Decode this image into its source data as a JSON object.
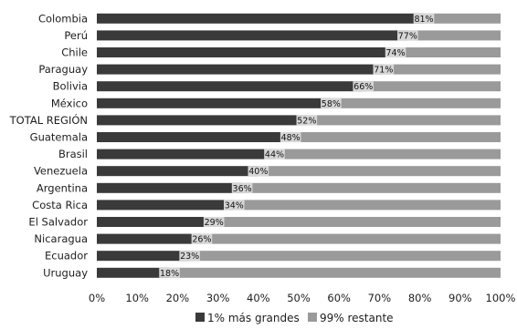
{
  "chart_data": {
    "type": "bar",
    "orientation": "horizontal",
    "stacked": true,
    "categories": [
      "Colombia",
      "Perú",
      "Chile",
      "Paraguay",
      "Bolivia",
      "México",
      "TOTAL REGIÓN",
      "Guatemala",
      "Brasil",
      "Venezuela",
      "Argentina",
      "Costa Rica",
      "El Salvador",
      "Nicaragua",
      "Ecuador",
      "Uruguay"
    ],
    "series": [
      {
        "name": "1% más grandes",
        "color": "#3a3a3a",
        "values": [
          81,
          77,
          74,
          71,
          66,
          58,
          52,
          48,
          44,
          40,
          36,
          34,
          29,
          26,
          23,
          18
        ]
      },
      {
        "name": "99% restante",
        "color": "#9a9a9a",
        "values": [
          19,
          23,
          26,
          29,
          34,
          42,
          48,
          52,
          56,
          60,
          64,
          66,
          71,
          74,
          77,
          82
        ]
      }
    ],
    "data_labels": [
      "81%",
      "77%",
      "74%",
      "71%",
      "66%",
      "58%",
      "52%",
      "48%",
      "44%",
      "40%",
      "36%",
      "34%",
      "29%",
      "26%",
      "23%",
      "18%"
    ],
    "x_ticks": [
      "0%",
      "10%",
      "20%",
      "30%",
      "40%",
      "50%",
      "60%",
      "70%",
      "80%",
      "90%",
      "100%"
    ],
    "xlim": [
      0,
      100
    ],
    "grid": false,
    "legend": "bottom"
  }
}
